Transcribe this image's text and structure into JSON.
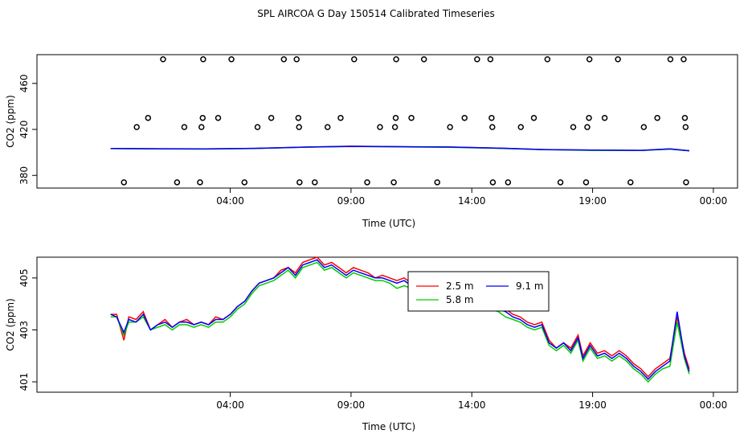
{
  "title": "SPL AIRCOA G  Day 150514  Calibrated Timeseries",
  "chart_data": [
    {
      "type": "scatter",
      "id": "top-panel",
      "xlabel": "Time (UTC)",
      "ylabel": "CO2 (ppm)",
      "xlim": [
        -4.0,
        25.0
      ],
      "ylim": [
        369.0,
        485.0
      ],
      "x_ticks": [
        {
          "value": 4.0,
          "label": "04:00"
        },
        {
          "value": 9.0,
          "label": "09:00"
        },
        {
          "value": 14.0,
          "label": "14:00"
        },
        {
          "value": 19.0,
          "label": "19:00"
        },
        {
          "value": 24.0,
          "label": "00:00"
        }
      ],
      "y_ticks": [
        {
          "value": 380,
          "label": "380"
        },
        {
          "value": 420,
          "label": "420"
        },
        {
          "value": 460,
          "label": "460"
        }
      ],
      "calibration_points": [
        {
          "x": -0.4,
          "y": 374
        },
        {
          "x": 0.13,
          "y": 422
        },
        {
          "x": 0.6,
          "y": 430
        },
        {
          "x": 1.22,
          "y": 481
        },
        {
          "x": 1.8,
          "y": 374
        },
        {
          "x": 2.1,
          "y": 422
        },
        {
          "x": 2.75,
          "y": 374
        },
        {
          "x": 2.81,
          "y": 422
        },
        {
          "x": 2.86,
          "y": 430
        },
        {
          "x": 2.88,
          "y": 481
        },
        {
          "x": 3.5,
          "y": 430
        },
        {
          "x": 4.05,
          "y": 481
        },
        {
          "x": 4.59,
          "y": 374
        },
        {
          "x": 5.13,
          "y": 422
        },
        {
          "x": 5.7,
          "y": 430
        },
        {
          "x": 6.22,
          "y": 481
        },
        {
          "x": 6.75,
          "y": 481
        },
        {
          "x": 6.82,
          "y": 430
        },
        {
          "x": 6.85,
          "y": 422
        },
        {
          "x": 6.87,
          "y": 374
        },
        {
          "x": 7.5,
          "y": 374
        },
        {
          "x": 8.03,
          "y": 422
        },
        {
          "x": 8.57,
          "y": 430
        },
        {
          "x": 9.13,
          "y": 481
        },
        {
          "x": 9.67,
          "y": 374
        },
        {
          "x": 10.2,
          "y": 422
        },
        {
          "x": 10.77,
          "y": 374
        },
        {
          "x": 10.82,
          "y": 422
        },
        {
          "x": 10.85,
          "y": 430
        },
        {
          "x": 10.87,
          "y": 481
        },
        {
          "x": 11.5,
          "y": 430
        },
        {
          "x": 12.02,
          "y": 481
        },
        {
          "x": 12.57,
          "y": 374
        },
        {
          "x": 13.1,
          "y": 422
        },
        {
          "x": 13.7,
          "y": 430
        },
        {
          "x": 14.22,
          "y": 481
        },
        {
          "x": 14.77,
          "y": 481
        },
        {
          "x": 14.82,
          "y": 430
        },
        {
          "x": 14.85,
          "y": 422
        },
        {
          "x": 14.87,
          "y": 374
        },
        {
          "x": 15.5,
          "y": 374
        },
        {
          "x": 16.03,
          "y": 422
        },
        {
          "x": 16.57,
          "y": 430
        },
        {
          "x": 17.13,
          "y": 481
        },
        {
          "x": 17.67,
          "y": 374
        },
        {
          "x": 18.2,
          "y": 422
        },
        {
          "x": 18.73,
          "y": 374
        },
        {
          "x": 18.78,
          "y": 422
        },
        {
          "x": 18.85,
          "y": 430
        },
        {
          "x": 18.87,
          "y": 481
        },
        {
          "x": 19.5,
          "y": 430
        },
        {
          "x": 20.05,
          "y": 481
        },
        {
          "x": 20.57,
          "y": 374
        },
        {
          "x": 21.12,
          "y": 422
        },
        {
          "x": 21.68,
          "y": 430
        },
        {
          "x": 22.22,
          "y": 481
        },
        {
          "x": 22.77,
          "y": 481
        },
        {
          "x": 22.82,
          "y": 430
        },
        {
          "x": 22.85,
          "y": 422
        },
        {
          "x": 22.87,
          "y": 374
        }
      ],
      "series": [
        {
          "name": "2.5 m",
          "color": "#ff0000",
          "x": [
            -0.95,
            1,
            3,
            5,
            7,
            9,
            11,
            13,
            15,
            17,
            19,
            21,
            22.2,
            23
          ],
          "y": [
            403.4,
            403.2,
            403.0,
            403.5,
            404.6,
            405.4,
            405.0,
            404.7,
            403.8,
            402.5,
            402.0,
            401.8,
            403.0,
            401.5
          ]
        },
        {
          "name": "5.8 m",
          "color": "#00cc00",
          "x": [
            -0.95,
            1,
            3,
            5,
            7,
            9,
            11,
            13,
            15,
            17,
            19,
            21,
            22.2,
            23
          ],
          "y": [
            403.3,
            403.1,
            402.9,
            403.4,
            404.5,
            405.2,
            404.8,
            404.5,
            403.6,
            402.3,
            401.8,
            401.6,
            402.8,
            401.4
          ]
        },
        {
          "name": "9.1 m",
          "color": "#0000ff",
          "x": [
            -0.95,
            1,
            3,
            5,
            7,
            9,
            11,
            13,
            15,
            17,
            19,
            21,
            22.2,
            23
          ],
          "y": [
            403.4,
            403.2,
            403.0,
            403.5,
            404.6,
            405.3,
            405.0,
            404.7,
            403.8,
            402.5,
            402.0,
            401.8,
            403.0,
            401.4
          ]
        }
      ]
    },
    {
      "type": "line",
      "id": "bottom-panel",
      "xlabel": "Time (UTC)",
      "ylabel": "CO2 (ppm)",
      "xlim": [
        -4.0,
        25.0
      ],
      "ylim": [
        400.6,
        405.8
      ],
      "x_ticks": [
        {
          "value": 4.0,
          "label": "04:00"
        },
        {
          "value": 9.0,
          "label": "09:00"
        },
        {
          "value": 14.0,
          "label": "14:00"
        },
        {
          "value": 19.0,
          "label": "19:00"
        },
        {
          "value": 24.0,
          "label": "00:00"
        }
      ],
      "y_ticks": [
        {
          "value": 401,
          "label": "401"
        },
        {
          "value": 403,
          "label": "403"
        },
        {
          "value": 405,
          "label": "405"
        }
      ],
      "legend": {
        "position": "top-center",
        "entries": [
          "2.5 m",
          "9.1 m",
          "5.8 m"
        ]
      },
      "x": [
        -0.95,
        -0.7,
        -0.4,
        -0.2,
        0.1,
        0.4,
        0.7,
        1.0,
        1.3,
        1.6,
        1.9,
        2.2,
        2.5,
        2.8,
        3.1,
        3.4,
        3.7,
        4.0,
        4.3,
        4.6,
        4.9,
        5.2,
        5.5,
        5.8,
        6.1,
        6.4,
        6.7,
        7.0,
        7.3,
        7.6,
        7.9,
        8.2,
        8.5,
        8.8,
        9.1,
        9.4,
        9.7,
        10.0,
        10.3,
        10.6,
        10.9,
        11.2,
        11.5,
        11.8,
        12.1,
        12.4,
        12.7,
        13.0,
        13.3,
        13.6,
        13.9,
        14.2,
        14.5,
        14.8,
        15.1,
        15.4,
        15.7,
        16.0,
        16.3,
        16.6,
        16.9,
        17.2,
        17.5,
        17.8,
        18.1,
        18.4,
        18.6,
        18.9,
        19.2,
        19.5,
        19.8,
        20.1,
        20.4,
        20.7,
        21.0,
        21.3,
        21.6,
        21.9,
        22.2,
        22.5,
        22.8,
        23.0
      ],
      "series": [
        {
          "name": "2.5 m",
          "color": "#ff0000",
          "values": [
            403.6,
            403.6,
            402.6,
            403.5,
            403.4,
            403.7,
            403.0,
            403.2,
            403.4,
            403.1,
            403.3,
            403.4,
            403.2,
            403.3,
            403.2,
            403.5,
            403.4,
            403.6,
            403.9,
            404.1,
            404.5,
            404.8,
            404.9,
            405.0,
            405.3,
            405.4,
            405.2,
            405.6,
            405.7,
            405.8,
            405.5,
            405.6,
            405.4,
            405.2,
            405.4,
            405.3,
            405.2,
            405.0,
            405.1,
            405.0,
            404.9,
            405.0,
            404.8,
            404.9,
            405.0,
            404.9,
            405.0,
            404.4,
            404.6,
            404.0,
            404.3,
            404.1,
            404.2,
            404.0,
            403.9,
            403.8,
            403.6,
            403.5,
            403.3,
            403.2,
            403.3,
            402.6,
            402.3,
            402.5,
            402.3,
            402.8,
            402.0,
            402.5,
            402.1,
            402.2,
            402.0,
            402.2,
            402.0,
            401.7,
            401.5,
            401.2,
            401.5,
            401.7,
            401.9,
            403.5,
            402.1,
            401.5
          ]
        },
        {
          "name": "5.8 m",
          "color": "#00cc00",
          "values": [
            403.5,
            403.5,
            402.8,
            403.3,
            403.3,
            403.5,
            403.0,
            403.1,
            403.2,
            403.0,
            403.2,
            403.2,
            403.1,
            403.2,
            403.1,
            403.3,
            403.3,
            403.5,
            403.8,
            404.0,
            404.4,
            404.7,
            404.8,
            404.9,
            405.1,
            405.3,
            405.0,
            405.4,
            405.5,
            405.6,
            405.3,
            405.4,
            405.2,
            405.0,
            405.2,
            405.1,
            405.0,
            404.9,
            404.9,
            404.8,
            404.6,
            404.7,
            404.6,
            404.7,
            404.8,
            404.7,
            404.8,
            404.2,
            404.4,
            403.9,
            404.1,
            403.9,
            404.0,
            403.8,
            403.7,
            403.5,
            403.4,
            403.3,
            403.1,
            403.0,
            403.1,
            402.4,
            402.2,
            402.4,
            402.1,
            402.6,
            401.8,
            402.3,
            401.9,
            402.0,
            401.8,
            402.0,
            401.8,
            401.5,
            401.3,
            401.0,
            401.3,
            401.5,
            401.6,
            403.3,
            401.9,
            401.3
          ]
        },
        {
          "name": "9.1 m",
          "color": "#0000ff",
          "values": [
            403.6,
            403.5,
            402.9,
            403.4,
            403.3,
            403.6,
            403.0,
            403.2,
            403.3,
            403.1,
            403.3,
            403.3,
            403.2,
            403.3,
            403.2,
            403.4,
            403.4,
            403.6,
            403.9,
            404.1,
            404.5,
            404.8,
            404.9,
            405.0,
            405.2,
            405.4,
            405.1,
            405.5,
            405.6,
            405.7,
            405.4,
            405.5,
            405.3,
            405.1,
            405.3,
            405.2,
            405.1,
            405.0,
            405.0,
            404.9,
            404.8,
            404.9,
            404.7,
            404.8,
            404.9,
            404.8,
            404.9,
            404.3,
            404.5,
            404.0,
            404.2,
            404.0,
            404.1,
            403.9,
            403.8,
            403.7,
            403.5,
            403.4,
            403.2,
            403.1,
            403.2,
            402.5,
            402.3,
            402.5,
            402.2,
            402.7,
            401.9,
            402.4,
            402.0,
            402.1,
            401.9,
            402.1,
            401.9,
            401.6,
            401.4,
            401.1,
            401.4,
            401.6,
            401.8,
            403.7,
            402.0,
            401.4
          ]
        }
      ]
    }
  ]
}
